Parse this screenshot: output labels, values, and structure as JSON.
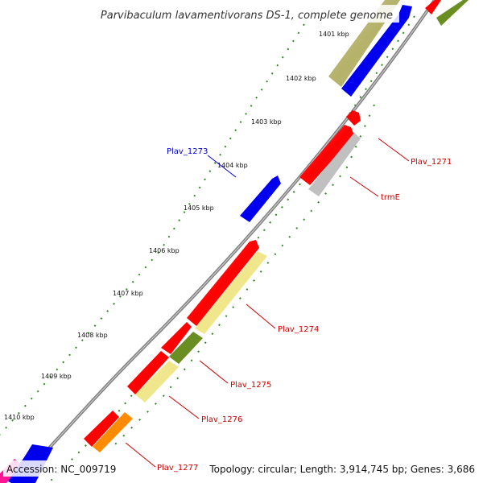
{
  "title": "Parvibaculum lavamentivorans DS-1, complete genome",
  "footer": {
    "accession": "Accession: NC_009719",
    "stats": "Topology: circular; Length: 3,914,745 bp; Genes: 3,686"
  },
  "colors": {
    "backbone": "#808080",
    "kbp_tick": "#2e8b22",
    "gene_red": "#ff0000",
    "gene_blue": "#0000ee",
    "gene_olive": "#b5b26a",
    "gene_darkolive": "#6b8e23",
    "gene_khaki": "#f0e68c",
    "gene_gray": "#c0c0c0",
    "gene_orange": "#ff8c00",
    "gene_pink": "#ff1493",
    "label_red": "#cc0000",
    "label_blue": "#0000cc"
  },
  "kbp_labels": [
    "1401 kbp",
    "1402 kbp",
    "1403 kbp",
    "1404 kbp",
    "1405 kbp",
    "1406 kbp",
    "1407 kbp",
    "1408 kbp",
    "1409 kbp",
    "1410 kbp"
  ],
  "gene_labels": {
    "plav_1271": "Plav_1271",
    "trmE": "trmE",
    "plav_1273": "Plav_1273",
    "plav_1274": "Plav_1274",
    "plav_1275": "Plav_1275",
    "plav_1276": "Plav_1276",
    "plav_1277": "Plav_1277"
  }
}
